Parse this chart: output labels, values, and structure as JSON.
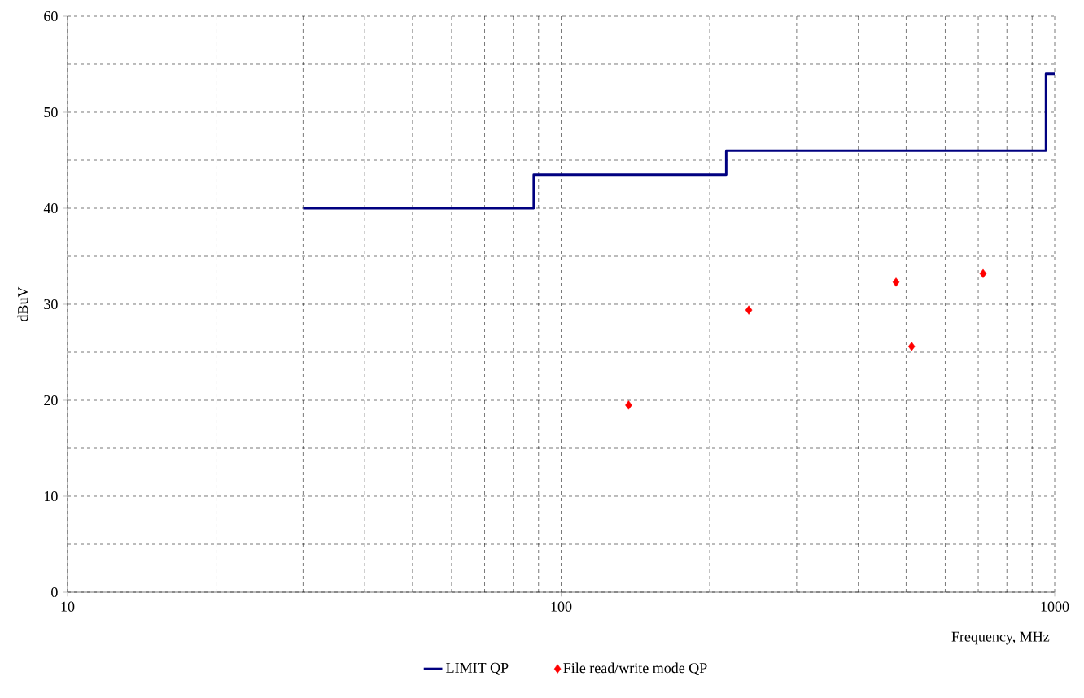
{
  "chart_data": {
    "type": "scatter",
    "xlabel": "Frequency, MHz",
    "ylabel": "dBuV",
    "log": "x",
    "grid": true,
    "legend": "bottom",
    "xlim": [
      10,
      1000
    ],
    "xticks": [
      10,
      100,
      1000
    ],
    "ylim": [
      0,
      60
    ],
    "yticks": [
      0,
      10,
      20,
      30,
      40,
      50,
      60
    ],
    "series": [
      {
        "name": "LIMIT QP",
        "type": "step",
        "color": "#000080",
        "marker": "none",
        "line_style": "solid",
        "x": [
          30,
          88,
          216,
          960,
          1000
        ],
        "values": [
          40,
          43.5,
          46,
          54,
          54
        ]
      },
      {
        "name": "File read/write mode QP",
        "color": "#ff0000",
        "marker": "diamond",
        "x": [
          137,
          240,
          477,
          513,
          716
        ],
        "values": [
          19.5,
          29.4,
          32.3,
          25.6,
          33.2
        ]
      }
    ]
  }
}
